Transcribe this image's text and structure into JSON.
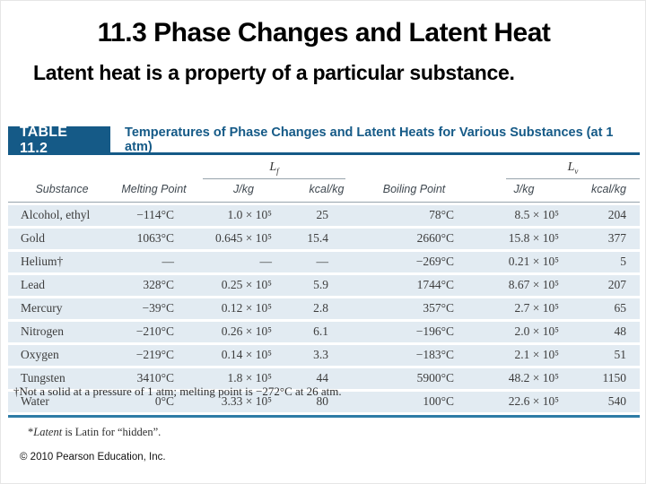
{
  "colors": {
    "blue": "#155a87",
    "row_blue": "#e2ebf2",
    "rule_blue": "#2e7ca6",
    "rule_gray": "#97a3ac"
  },
  "slide": {
    "title": "11.3 Phase Changes and Latent Heat",
    "subtitle": "Latent heat is a property of a particular substance."
  },
  "table": {
    "label": "TABLE 11.2",
    "caption": "Temperatures of Phase Changes and Latent Heats for Various Substances (at 1 atm)",
    "lf": {
      "letter": "L",
      "sub": "f"
    },
    "lv": {
      "letter": "L",
      "sub": "v"
    },
    "headers": [
      "Substance",
      "Melting Point",
      "J/kg",
      "kcal/kg",
      "Boiling Point",
      "J/kg",
      "kcal/kg"
    ],
    "rows": [
      [
        "Alcohol, ethyl",
        "−114°C",
        "1.0 × 10⁵",
        "25",
        "78°C",
        "8.5 × 10⁵",
        "204"
      ],
      [
        "Gold",
        "1063°C",
        "0.645 × 10⁵",
        "15.4",
        "2660°C",
        "15.8 × 10⁵",
        "377"
      ],
      [
        "Helium†",
        "—",
        "—",
        "—",
        "−269°C",
        "0.21 × 10⁵",
        "5"
      ],
      [
        "Lead",
        "328°C",
        "0.25 × 10⁵",
        "5.9",
        "1744°C",
        "8.67 × 10⁵",
        "207"
      ],
      [
        "Mercury",
        "−39°C",
        "0.12 × 10⁵",
        "2.8",
        "357°C",
        "2.7 × 10⁵",
        "65"
      ],
      [
        "Nitrogen",
        "−210°C",
        "0.26 × 10⁵",
        "6.1",
        "−196°C",
        "2.0 × 10⁵",
        "48"
      ],
      [
        "Oxygen",
        "−219°C",
        "0.14 × 10⁵",
        "3.3",
        "−183°C",
        "2.1 × 10⁵",
        "51"
      ],
      [
        "Tungsten",
        "3410°C",
        "1.8 × 10⁵",
        "44",
        "5900°C",
        "48.2 × 10⁵",
        "1150"
      ],
      [
        "Water",
        "0°C",
        "3.33 × 10⁵",
        "80",
        "100°C",
        "22.6 × 10⁵",
        "540"
      ]
    ]
  },
  "footnotes": {
    "dagger": "†Not a solid at a pressure of 1 atm; melting point is −272°C at 26 atm.",
    "latent_prefix": "*",
    "latent_word": "Latent",
    "latent_rest": " is Latin for “hidden”."
  },
  "copyright": "© 2010 Pearson Education, Inc."
}
